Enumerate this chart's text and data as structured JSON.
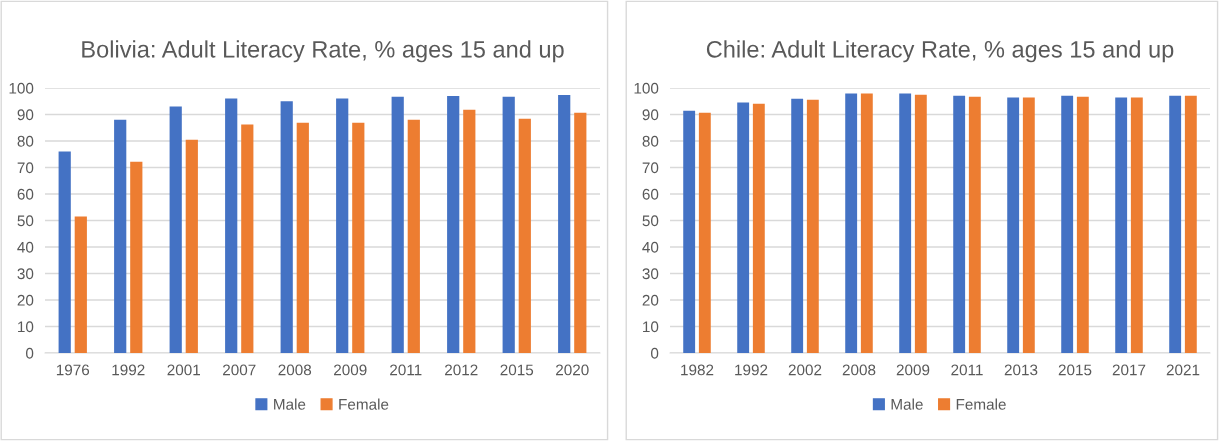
{
  "chart_data": [
    {
      "type": "bar",
      "title": "Bolivia: Adult Literacy Rate, % ages 15 and up",
      "categories": [
        "1976",
        "1992",
        "2001",
        "2007",
        "2008",
        "2009",
        "2011",
        "2012",
        "2015",
        "2020"
      ],
      "series": [
        {
          "name": "Male",
          "color": "#4472c4",
          "values": [
            76,
            88,
            93,
            96,
            95,
            96,
            96.7,
            97,
            96.7,
            97.4
          ]
        },
        {
          "name": "Female",
          "color": "#ed7d31",
          "values": [
            51.5,
            72.2,
            80.5,
            86.2,
            86.9,
            86.9,
            88,
            91.8,
            88.4,
            90.7
          ]
        }
      ],
      "ylim": [
        0,
        100
      ],
      "yticks": [
        0,
        10,
        20,
        30,
        40,
        50,
        60,
        70,
        80,
        90,
        100
      ],
      "grid": "y",
      "legend": "bottom"
    },
    {
      "type": "bar",
      "title": "Chile: Adult Literacy Rate, % ages 15 and up",
      "categories": [
        "1982",
        "1992",
        "2002",
        "2008",
        "2009",
        "2011",
        "2013",
        "2015",
        "2017",
        "2021"
      ],
      "series": [
        {
          "name": "Male",
          "color": "#4472c4",
          "values": [
            91.4,
            94.5,
            95.9,
            97.9,
            97.9,
            97.1,
            96.4,
            97.1,
            96.4,
            97.1
          ]
        },
        {
          "name": "Female",
          "color": "#ed7d31",
          "values": [
            90.7,
            94.1,
            95.6,
            97.9,
            97.5,
            96.7,
            96.4,
            96.7,
            96.4,
            97.1
          ]
        }
      ],
      "ylim": [
        0,
        100
      ],
      "yticks": [
        0,
        10,
        20,
        30,
        40,
        50,
        60,
        70,
        80,
        90,
        100
      ],
      "grid": "y",
      "legend": "bottom"
    }
  ]
}
